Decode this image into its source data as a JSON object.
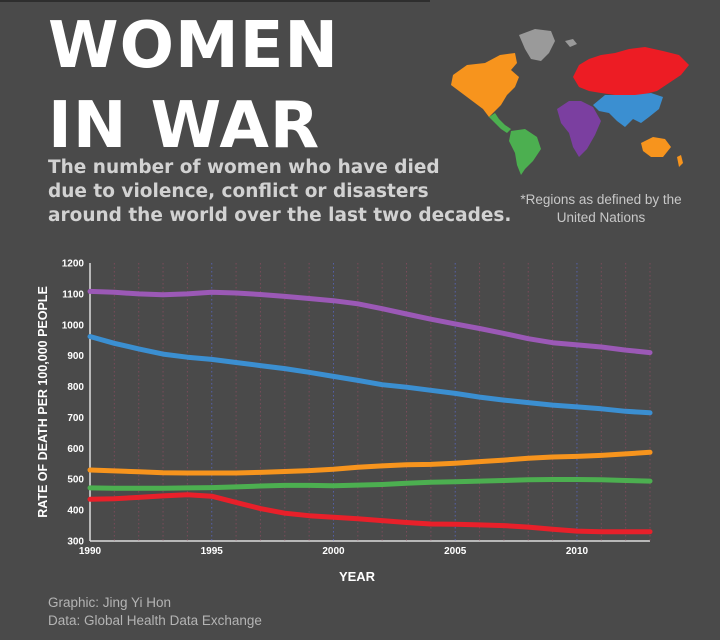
{
  "header": {
    "title_line1": "WOMEN",
    "title_line2": "IN WAR",
    "subtitle_lines": [
      "The number of women who have died",
      "due to violence, conflict or disasters",
      "around the world over the last two decades."
    ]
  },
  "map": {
    "note_line1": "*Regions as defined by the",
    "note_line2": "United Nations",
    "colors": {
      "americas_north": "#f7941d",
      "americas_south": "#4caf50",
      "europe_asia": "#ed1c24",
      "africa": "#7b3fa0",
      "south_asia": "#3b8fd1",
      "oceania": "#f7941d",
      "greenland": "#9a9a9a"
    }
  },
  "credits": {
    "graphic": "Graphic: Jing Yi Hon",
    "data": "Data: Global Health Data Exchange"
  },
  "chart_data": {
    "type": "line",
    "title": "",
    "xlabel": "YEAR",
    "ylabel": "RATE OF DEATH PER 100,000 PEOPLE",
    "x": [
      1990,
      1991,
      1992,
      1993,
      1994,
      1995,
      1996,
      1997,
      1998,
      1999,
      2000,
      2001,
      2002,
      2003,
      2004,
      2005,
      2006,
      2007,
      2008,
      2009,
      2010,
      2011,
      2012,
      2013
    ],
    "xlim": [
      1990,
      2013
    ],
    "ylim": [
      300,
      1200
    ],
    "x_ticks": [
      "1990",
      "1995",
      "2000",
      "2005",
      "2010"
    ],
    "y_ticks": [
      "300",
      "400",
      "500",
      "600",
      "700",
      "800",
      "900",
      "1000",
      "1100",
      "1200"
    ],
    "grid": "vertical dotted lines each year",
    "legend": "none",
    "series": [
      {
        "color": "#9b59b6",
        "values": [
          1108,
          1105,
          1100,
          1097,
          1100,
          1105,
          1103,
          1098,
          1092,
          1085,
          1078,
          1068,
          1052,
          1035,
          1018,
          1003,
          988,
          972,
          955,
          942,
          935,
          928,
          918,
          910
        ]
      },
      {
        "color": "#3b8fd1",
        "values": [
          962,
          940,
          922,
          905,
          895,
          888,
          878,
          868,
          858,
          846,
          833,
          820,
          806,
          798,
          788,
          778,
          766,
          756,
          748,
          740,
          734,
          728,
          720,
          715
        ]
      },
      {
        "color": "#f7941d",
        "values": [
          530,
          527,
          524,
          521,
          520,
          520,
          520,
          522,
          525,
          528,
          532,
          539,
          543,
          547,
          548,
          552,
          557,
          562,
          568,
          572,
          574,
          577,
          582,
          587
        ]
      },
      {
        "color": "#4caf50",
        "values": [
          472,
          471,
          471,
          471,
          472,
          473,
          475,
          478,
          480,
          480,
          479,
          481,
          483,
          487,
          490,
          492,
          494,
          496,
          498,
          499,
          499,
          498,
          496,
          494
        ]
      },
      {
        "color": "#e8202a",
        "values": [
          435,
          437,
          441,
          446,
          450,
          445,
          425,
          405,
          390,
          382,
          377,
          372,
          366,
          360,
          355,
          354,
          352,
          350,
          345,
          338,
          332,
          330,
          330,
          330
        ]
      }
    ]
  }
}
